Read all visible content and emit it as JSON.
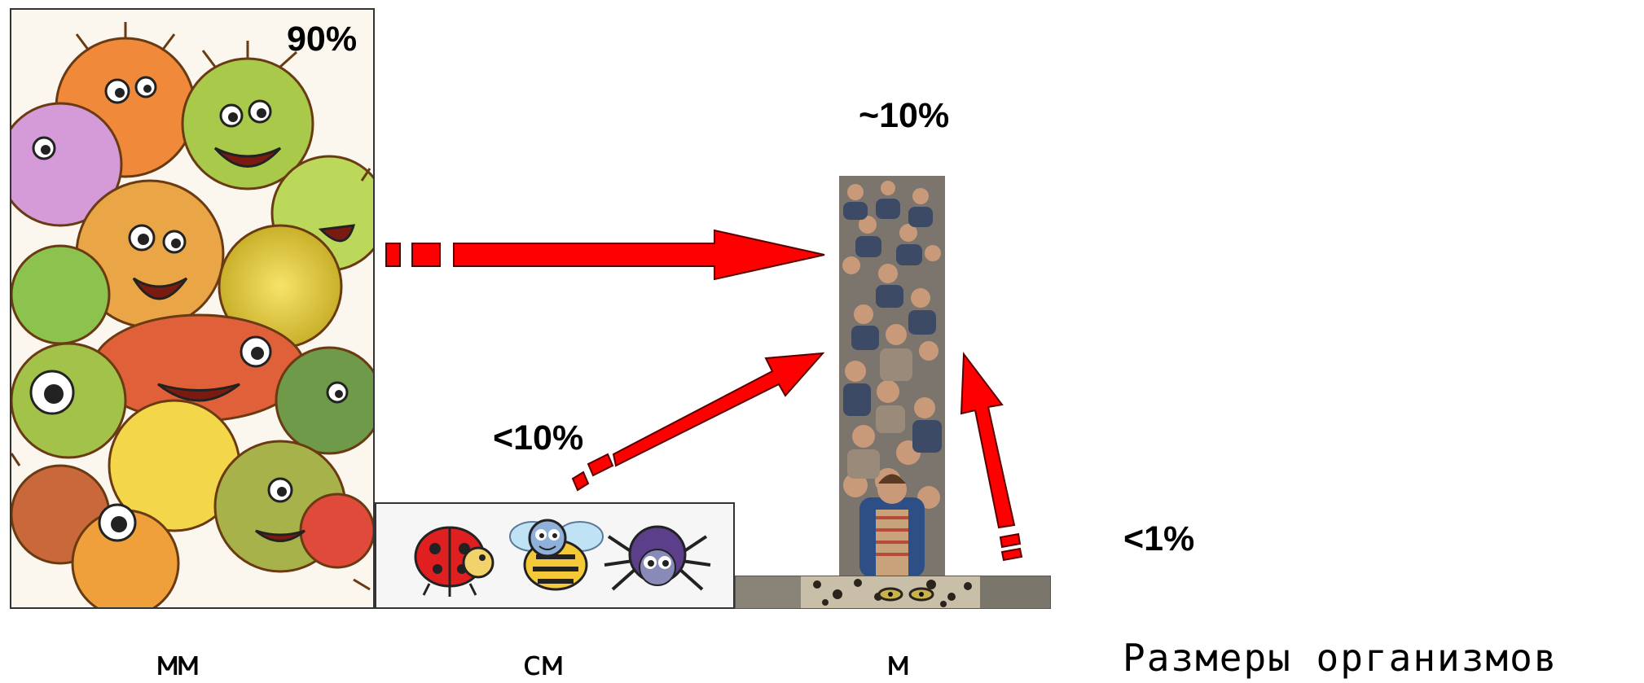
{
  "labels": {
    "mm_pct": "90%",
    "cm_pct": "<10%",
    "m_pct": "~10%",
    "big_pct": "<1%"
  },
  "axis": {
    "ticks": [
      "мм",
      "см",
      "м"
    ],
    "title": "Размеры организмов"
  },
  "images": {
    "mm": "microbes-illustration",
    "cm": "insects-illustration",
    "m": "crowd-photo",
    "big": "leopard-photo"
  },
  "colors": {
    "arrow_fill": "#ff0000",
    "arrow_stroke": "#5a0000",
    "border": "#333333"
  }
}
